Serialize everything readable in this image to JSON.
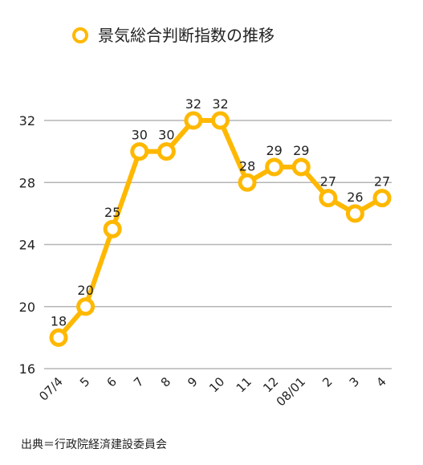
{
  "chart_data": {
    "type": "line",
    "title": "",
    "legend_position": "top",
    "grid": true,
    "color": "#FFB800",
    "categories": [
      "07/4",
      "5",
      "6",
      "7",
      "8",
      "9",
      "10",
      "11",
      "12",
      "08/01",
      "2",
      "3",
      "4"
    ],
    "series": [
      {
        "name": "景気総合判断指数の推移",
        "values": [
          18,
          20,
          25,
          30,
          30,
          32,
          32,
          28,
          29,
          29,
          27,
          26,
          27
        ]
      }
    ],
    "ylim": [
      16,
      32
    ],
    "yticks": [
      16,
      20,
      24,
      28,
      32
    ],
    "xlabel": "",
    "ylabel": ""
  },
  "source_text": "出典＝行政院経済建設委員会"
}
